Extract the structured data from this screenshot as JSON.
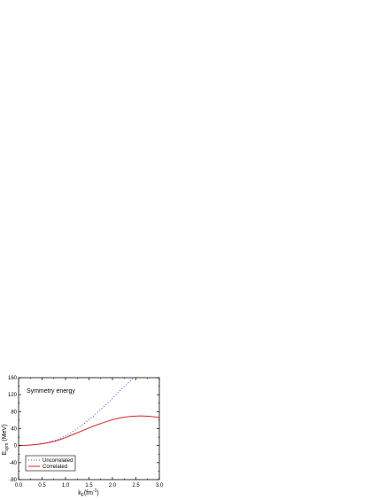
{
  "chart_data": {
    "type": "line",
    "annotation": "Symmetry energy",
    "ylabel": {
      "main": "E",
      "sub": "sym",
      "rest": " (MeV)"
    },
    "xlabel": {
      "main": "k",
      "sub": "F",
      "rest": "(fm",
      "sup": "-1",
      "end": ")"
    },
    "xlim": [
      0.0,
      3.0
    ],
    "ylim": [
      -80,
      160
    ],
    "xticks": [
      "0.0",
      "0.5",
      "1.0",
      "1.5",
      "2.0",
      "2.5",
      "3.0"
    ],
    "yticks": [
      "-80",
      "-40",
      "0",
      "40",
      "80",
      "120",
      "160"
    ],
    "legend_position": "bottom-left",
    "series": [
      {
        "name": "Uncorrelated",
        "color": "#4444ee",
        "dash": "dotted",
        "x": [
          0.0,
          0.2,
          0.4,
          0.6,
          0.8,
          1.0,
          1.2,
          1.4,
          1.6,
          1.8,
          2.0,
          2.2,
          2.4,
          2.45
        ],
        "y": [
          0,
          1,
          3,
          7,
          13,
          23,
          36,
          52,
          70,
          90,
          111,
          134,
          154,
          160
        ]
      },
      {
        "name": "Correlated",
        "color": "#dd2222",
        "dash": "solid",
        "x": [
          0.0,
          0.2,
          0.4,
          0.6,
          0.8,
          1.0,
          1.2,
          1.4,
          1.6,
          1.8,
          2.0,
          2.2,
          2.4,
          2.6,
          2.8,
          3.0
        ],
        "y": [
          0,
          1,
          3,
          6,
          11,
          19,
          28,
          37,
          46,
          54,
          61,
          66,
          69,
          70,
          69,
          66
        ]
      }
    ]
  }
}
